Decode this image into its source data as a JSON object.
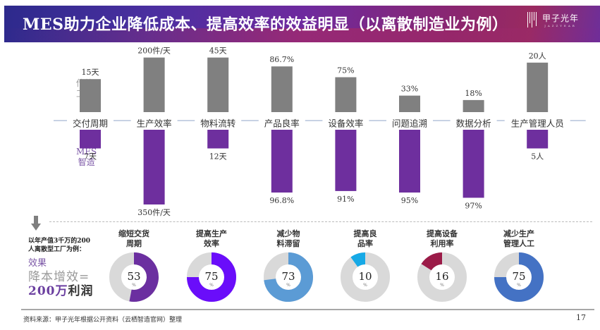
{
  "header": {
    "title": "MES助力企业降低成本、提高效率的效益明显（以离散制造业为例）",
    "logo_cn": "甲子光年",
    "logo_en": "JAZZYEAR"
  },
  "colors": {
    "traditional_bar": "#808080",
    "mes_bar": "#6e2f9e",
    "axis_line": "#8fa4c8",
    "donut_track": "#d9d9d9"
  },
  "side_labels": {
    "traditional": [
      "传统",
      "工厂"
    ],
    "mes": [
      "MES",
      "智造"
    ]
  },
  "chart_data": {
    "type": "bar",
    "title": "MES助力企业降低成本、提高效率的效益明显（以离散制造业为例）",
    "xlabel": "",
    "ylabel": "",
    "legend": [
      "传统工厂 (above axis, gray)",
      "MES智造 (below axis, purple)"
    ],
    "categories": [
      "交付周期",
      "生产效率",
      "物料流转",
      "产品良率",
      "设备效率",
      "问题追溯",
      "数据分析",
      "生产管理人员"
    ],
    "series": [
      {
        "name": "传统工厂",
        "labels": [
          "15天",
          "200件/天",
          "45天",
          "86.7%",
          "75%",
          "33%",
          "18%",
          "20人"
        ],
        "values": [
          15,
          200,
          45,
          86.7,
          75,
          33,
          18,
          20
        ],
        "relative_height": [
          0.52,
          0.86,
          0.86,
          0.72,
          0.55,
          0.26,
          0.19,
          0.78
        ]
      },
      {
        "name": "MES智造",
        "labels": [
          "7天",
          "350件/天",
          "12天",
          "96.8%",
          "91%",
          "95%",
          "97%",
          "5人"
        ],
        "values": [
          7,
          350,
          12,
          96.8,
          91,
          95,
          97,
          5
        ],
        "relative_height": [
          0.25,
          1.0,
          0.25,
          0.84,
          0.82,
          0.84,
          0.91,
          0.25
        ]
      }
    ],
    "donuts": [
      {
        "title": [
          "缩短交货",
          "周期"
        ],
        "value": 53,
        "unit": "%",
        "color": "#6b2fa0",
        "direction": "cw"
      },
      {
        "title": [
          "提高生产",
          "效率"
        ],
        "value": 75,
        "unit": "%",
        "color": "#6a0dfa",
        "direction": "cw"
      },
      {
        "title": [
          "减少物",
          "料滞留"
        ],
        "value": 73,
        "unit": "%",
        "color": "#5b9bd5",
        "direction": "cw"
      },
      {
        "title": [
          "提高良",
          "品率"
        ],
        "value": 10,
        "unit": "%",
        "color": "#16a9e6",
        "direction": "ccw"
      },
      {
        "title": [
          "提高设备",
          "利用率"
        ],
        "value": 16,
        "unit": "%",
        "color": "#9b1b48",
        "direction": "ccw"
      },
      {
        "title": [
          "减少生产",
          "管理人工"
        ],
        "value": 75,
        "unit": "%",
        "color": "#4472c4",
        "direction": "cw"
      }
    ]
  },
  "summary": {
    "example_line1": "以年产值3千万的200",
    "example_line2": "人离散型工厂为例：",
    "effect_label": "效果",
    "effect_line1": "降本增效=",
    "effect_amount": "200万",
    "effect_suffix": "利润"
  },
  "footer": {
    "source": "资料来源：甲子光年根据公开资料（云栖智造官网）整理",
    "page_number": "17"
  }
}
